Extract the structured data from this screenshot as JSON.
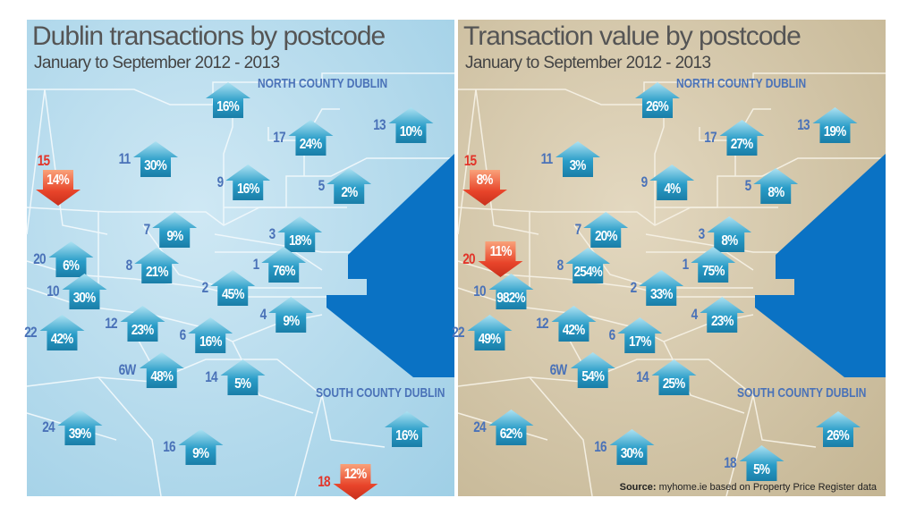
{
  "colors": {
    "sea": "#0a72c4",
    "increase": "#2a9dc8",
    "decrease": "#e8442a"
  },
  "left": {
    "title": "Dublin transactions by postcode",
    "subtitle": "January to September 2012 - 2013",
    "north_label": "NORTH COUNTY DUBLIN",
    "south_label": "SOUTH COUNTY DUBLIN",
    "markers": [
      {
        "district": "",
        "value": "16%",
        "direction": "up"
      },
      {
        "district": "13",
        "value": "10%",
        "direction": "up"
      },
      {
        "district": "17",
        "value": "24%",
        "direction": "up"
      },
      {
        "district": "11",
        "value": "30%",
        "direction": "up"
      },
      {
        "district": "15",
        "value": "14%",
        "direction": "down"
      },
      {
        "district": "9",
        "value": "16%",
        "direction": "up"
      },
      {
        "district": "5",
        "value": "2%",
        "direction": "up"
      },
      {
        "district": "7",
        "value": "9%",
        "direction": "up"
      },
      {
        "district": "3",
        "value": "18%",
        "direction": "up"
      },
      {
        "district": "20",
        "value": "6%",
        "direction": "up"
      },
      {
        "district": "8",
        "value": "21%",
        "direction": "up"
      },
      {
        "district": "1",
        "value": "76%",
        "direction": "up"
      },
      {
        "district": "2",
        "value": "45%",
        "direction": "up"
      },
      {
        "district": "10",
        "value": "30%",
        "direction": "up"
      },
      {
        "district": "22",
        "value": "42%",
        "direction": "up"
      },
      {
        "district": "12",
        "value": "23%",
        "direction": "up"
      },
      {
        "district": "4",
        "value": "9%",
        "direction": "up"
      },
      {
        "district": "6",
        "value": "16%",
        "direction": "up"
      },
      {
        "district": "6W",
        "value": "48%",
        "direction": "up"
      },
      {
        "district": "14",
        "value": "5%",
        "direction": "up"
      },
      {
        "district": "",
        "value": "16%",
        "direction": "up"
      },
      {
        "district": "24",
        "value": "39%",
        "direction": "up"
      },
      {
        "district": "16",
        "value": "9%",
        "direction": "up"
      },
      {
        "district": "18",
        "value": "12%",
        "direction": "down"
      }
    ]
  },
  "right": {
    "title": "Transaction value by postcode",
    "subtitle": "January to September 2012 - 2013",
    "north_label": "NORTH COUNTY DUBLIN",
    "south_label": "SOUTH COUNTY DUBLIN",
    "source_label": "Source:",
    "source_text": "myhome.ie based on Property Price Register data",
    "markers": [
      {
        "district": "",
        "value": "26%",
        "direction": "up"
      },
      {
        "district": "13",
        "value": "19%",
        "direction": "up"
      },
      {
        "district": "17",
        "value": "27%",
        "direction": "up"
      },
      {
        "district": "11",
        "value": "3%",
        "direction": "up"
      },
      {
        "district": "15",
        "value": "8%",
        "direction": "down"
      },
      {
        "district": "9",
        "value": "4%",
        "direction": "up"
      },
      {
        "district": "5",
        "value": "8%",
        "direction": "up"
      },
      {
        "district": "7",
        "value": "20%",
        "direction": "up"
      },
      {
        "district": "3",
        "value": "8%",
        "direction": "up"
      },
      {
        "district": "20",
        "value": "11%",
        "direction": "down"
      },
      {
        "district": "8",
        "value": "254%",
        "direction": "up"
      },
      {
        "district": "1",
        "value": "75%",
        "direction": "up"
      },
      {
        "district": "2",
        "value": "33%",
        "direction": "up"
      },
      {
        "district": "10",
        "value": "982%",
        "direction": "up"
      },
      {
        "district": "22",
        "value": "49%",
        "direction": "up"
      },
      {
        "district": "12",
        "value": "42%",
        "direction": "up"
      },
      {
        "district": "4",
        "value": "23%",
        "direction": "up"
      },
      {
        "district": "6",
        "value": "17%",
        "direction": "up"
      },
      {
        "district": "6W",
        "value": "54%",
        "direction": "up"
      },
      {
        "district": "14",
        "value": "25%",
        "direction": "up"
      },
      {
        "district": "",
        "value": "26%",
        "direction": "up"
      },
      {
        "district": "24",
        "value": "62%",
        "direction": "up"
      },
      {
        "district": "16",
        "value": "30%",
        "direction": "up"
      },
      {
        "district": "18",
        "value": "5%",
        "direction": "up"
      }
    ]
  }
}
